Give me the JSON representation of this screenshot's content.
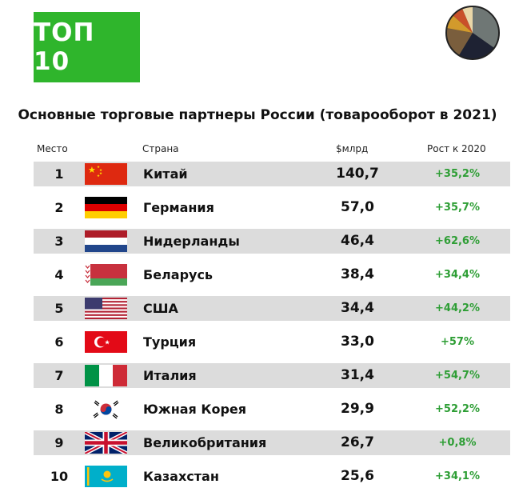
{
  "badge": "ТОП 10",
  "title": "Основные торговые партнеры России (товарооборот в 2021)",
  "headers": {
    "rank": "Место",
    "country": "Страна",
    "value": "$млрд",
    "growth": "Рост к 2020"
  },
  "colors": {
    "badge": "#2fb52c",
    "growth": "#2e9e35",
    "row_shade": "#dcdcdc"
  },
  "chart_data": {
    "type": "table",
    "title": "Основные торговые партнеры России (товарооборот в 2021)",
    "columns": [
      "Место",
      "Страна",
      "$млрд",
      "Рост к 2020"
    ],
    "rows": [
      {
        "rank": "1",
        "country": "Китай",
        "value": "140,7",
        "growth": "+35,2%",
        "flag": "china-flag"
      },
      {
        "rank": "2",
        "country": "Германия",
        "value": "57,0",
        "growth": "+35,7%",
        "flag": "germany-flag"
      },
      {
        "rank": "3",
        "country": "Нидерланды",
        "value": "46,4",
        "growth": "+62,6%",
        "flag": "netherlands-flag"
      },
      {
        "rank": "4",
        "country": "Беларусь",
        "value": "38,4",
        "growth": "+34,4%",
        "flag": "belarus-flag"
      },
      {
        "rank": "5",
        "country": "США",
        "value": "34,4",
        "growth": "+44,2%",
        "flag": "usa-flag"
      },
      {
        "rank": "6",
        "country": "Турция",
        "value": "33,0",
        "growth": "+57%",
        "flag": "turkey-flag"
      },
      {
        "rank": "7",
        "country": "Италия",
        "value": "31,4",
        "growth": "+54,7%",
        "flag": "italy-flag"
      },
      {
        "rank": "8",
        "country": "Южная Корея",
        "value": "29,9",
        "growth": "+52,2%",
        "flag": "south-korea-flag"
      },
      {
        "rank": "9",
        "country": "Великобритания",
        "value": "26,7",
        "growth": "+0,8%",
        "flag": "uk-flag"
      },
      {
        "rank": "10",
        "country": "Казахстан",
        "value": "25,6",
        "growth": "+34,1%",
        "flag": "kazakhstan-flag"
      }
    ]
  }
}
